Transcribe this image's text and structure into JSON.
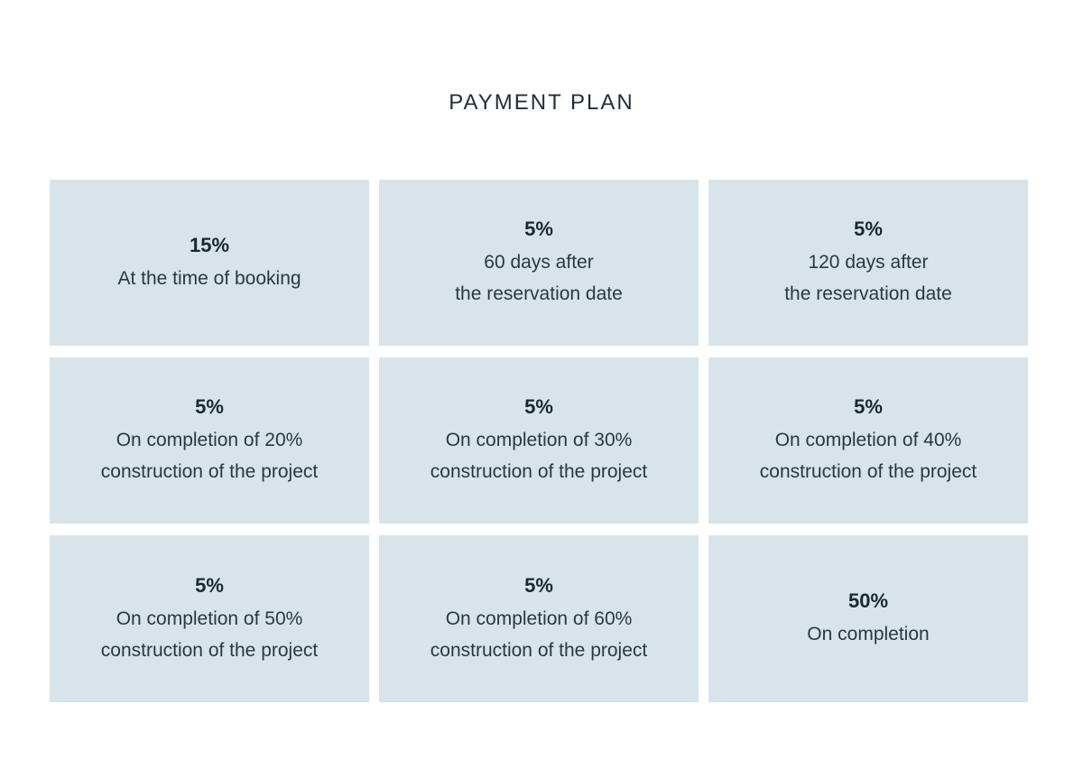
{
  "title": "PAYMENT PLAN",
  "cards": [
    {
      "percent": "15%",
      "line1": "At the time of booking",
      "line2": ""
    },
    {
      "percent": "5%",
      "line1": "60 days after",
      "line2": "the reservation date"
    },
    {
      "percent": "5%",
      "line1": "120 days after",
      "line2": "the reservation date"
    },
    {
      "percent": "5%",
      "line1": "On completion of 20%",
      "line2": "construction of the project"
    },
    {
      "percent": "5%",
      "line1": "On completion of 30%",
      "line2": "construction of the project"
    },
    {
      "percent": "5%",
      "line1": "On completion of 40%",
      "line2": "construction of the project"
    },
    {
      "percent": "5%",
      "line1": "On completion of 50%",
      "line2": "construction of the project"
    },
    {
      "percent": "5%",
      "line1": "On completion of 60%",
      "line2": "construction of the project"
    },
    {
      "percent": "50%",
      "line1": "On completion",
      "line2": ""
    }
  ],
  "colors": {
    "card_background": "#d8e4ea",
    "text": "#1d2a33"
  }
}
